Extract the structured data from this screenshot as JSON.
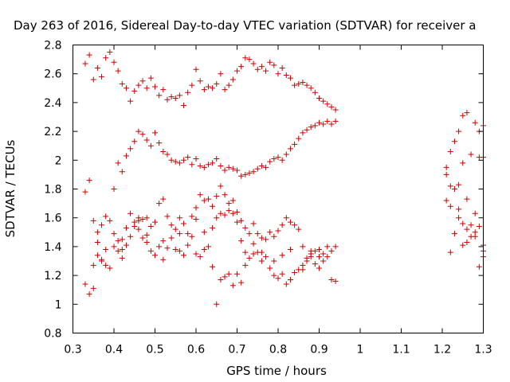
{
  "chart_data": {
    "type": "scatter",
    "title": "Day 263 of 2016, Sidereal Day-to-day VTEC variation (SDTVAR) for receiver a",
    "xlabel": "GPS time / hours",
    "ylabel": "SDTVAR / TECUs",
    "xlim": [
      0.3,
      1.3
    ],
    "ylim": [
      0.8,
      2.8
    ],
    "x_ticks": [
      "0.3",
      "0.4",
      "0.5",
      "0.6",
      "0.7",
      "0.8",
      "0.9",
      "1",
      "1.1",
      "1.2",
      "1.3"
    ],
    "y_ticks": [
      "0.8",
      "1",
      "1.2",
      "1.4",
      "1.6",
      "1.8",
      "2",
      "2.2",
      "2.4",
      "2.6",
      "2.8"
    ],
    "marker": "+",
    "color": "#cc0000",
    "series": [
      {
        "name": "SDTVAR",
        "points": [
          [
            0.33,
            2.67
          ],
          [
            0.34,
            2.73
          ],
          [
            0.35,
            2.56
          ],
          [
            0.36,
            2.64
          ],
          [
            0.37,
            2.58
          ],
          [
            0.38,
            2.71
          ],
          [
            0.39,
            2.75
          ],
          [
            0.4,
            2.68
          ],
          [
            0.41,
            2.62
          ],
          [
            0.42,
            2.53
          ],
          [
            0.43,
            2.5
          ],
          [
            0.44,
            2.41
          ],
          [
            0.45,
            2.48
          ],
          [
            0.46,
            2.52
          ],
          [
            0.47,
            2.55
          ],
          [
            0.48,
            2.5
          ],
          [
            0.49,
            2.57
          ],
          [
            0.5,
            2.51
          ],
          [
            0.51,
            2.45
          ],
          [
            0.52,
            2.49
          ],
          [
            0.53,
            2.42
          ],
          [
            0.54,
            2.44
          ],
          [
            0.55,
            2.43
          ],
          [
            0.56,
            2.45
          ],
          [
            0.57,
            2.38
          ],
          [
            0.58,
            2.47
          ],
          [
            0.59,
            2.52
          ],
          [
            0.6,
            2.63
          ],
          [
            0.61,
            2.55
          ],
          [
            0.62,
            2.49
          ],
          [
            0.63,
            2.51
          ],
          [
            0.64,
            2.5
          ],
          [
            0.65,
            2.53
          ],
          [
            0.66,
            2.6
          ],
          [
            0.67,
            2.49
          ],
          [
            0.68,
            2.52
          ],
          [
            0.69,
            2.56
          ],
          [
            0.7,
            2.62
          ],
          [
            0.71,
            2.65
          ],
          [
            0.72,
            2.71
          ],
          [
            0.73,
            2.7
          ],
          [
            0.74,
            2.67
          ],
          [
            0.75,
            2.63
          ],
          [
            0.76,
            2.65
          ],
          [
            0.77,
            2.62
          ],
          [
            0.78,
            2.68
          ],
          [
            0.79,
            2.66
          ],
          [
            0.8,
            2.6
          ],
          [
            0.81,
            2.64
          ],
          [
            0.82,
            2.59
          ],
          [
            0.83,
            2.57
          ],
          [
            0.84,
            2.52
          ],
          [
            0.85,
            2.53
          ],
          [
            0.86,
            2.54
          ],
          [
            0.87,
            2.52
          ],
          [
            0.88,
            2.5
          ],
          [
            0.89,
            2.47
          ],
          [
            0.9,
            2.43
          ],
          [
            0.91,
            2.41
          ],
          [
            0.92,
            2.39
          ],
          [
            0.93,
            2.37
          ],
          [
            0.94,
            2.35
          ],
          [
            0.4,
            1.8
          ],
          [
            0.41,
            1.98
          ],
          [
            0.42,
            1.92
          ],
          [
            0.43,
            2.03
          ],
          [
            0.44,
            2.08
          ],
          [
            0.45,
            2.13
          ],
          [
            0.46,
            2.2
          ],
          [
            0.47,
            2.18
          ],
          [
            0.48,
            2.14
          ],
          [
            0.49,
            2.1
          ],
          [
            0.5,
            2.19
          ],
          [
            0.51,
            2.12
          ],
          [
            0.52,
            2.06
          ],
          [
            0.53,
            2.04
          ],
          [
            0.54,
            2.0
          ],
          [
            0.55,
            1.99
          ],
          [
            0.56,
            1.98
          ],
          [
            0.57,
            2.0
          ],
          [
            0.58,
            2.02
          ],
          [
            0.59,
            1.97
          ],
          [
            0.6,
            2.01
          ],
          [
            0.61,
            1.96
          ],
          [
            0.62,
            1.95
          ],
          [
            0.63,
            1.97
          ],
          [
            0.64,
            1.98
          ],
          [
            0.65,
            2.01
          ],
          [
            0.66,
            1.96
          ],
          [
            0.67,
            1.93
          ],
          [
            0.68,
            1.95
          ],
          [
            0.69,
            1.94
          ],
          [
            0.7,
            1.93
          ],
          [
            0.71,
            1.89
          ],
          [
            0.72,
            1.9
          ],
          [
            0.73,
            1.91
          ],
          [
            0.74,
            1.92
          ],
          [
            0.75,
            1.94
          ],
          [
            0.76,
            1.96
          ],
          [
            0.77,
            1.95
          ],
          [
            0.78,
            1.99
          ],
          [
            0.79,
            2.01
          ],
          [
            0.8,
            2.02
          ],
          [
            0.81,
            2.0
          ],
          [
            0.82,
            2.04
          ],
          [
            0.83,
            2.08
          ],
          [
            0.84,
            2.11
          ],
          [
            0.85,
            2.15
          ],
          [
            0.86,
            2.19
          ],
          [
            0.87,
            2.21
          ],
          [
            0.88,
            2.23
          ],
          [
            0.89,
            2.24
          ],
          [
            0.9,
            2.26
          ],
          [
            0.91,
            2.25
          ],
          [
            0.92,
            2.27
          ],
          [
            0.93,
            2.25
          ],
          [
            0.94,
            2.27
          ],
          [
            0.33,
            1.78
          ],
          [
            0.34,
            1.86
          ],
          [
            0.35,
            1.58
          ],
          [
            0.36,
            1.5
          ],
          [
            0.37,
            1.55
          ],
          [
            0.38,
            1.61
          ],
          [
            0.39,
            1.58
          ],
          [
            0.4,
            1.49
          ],
          [
            0.41,
            1.37
          ],
          [
            0.42,
            1.45
          ],
          [
            0.43,
            1.53
          ],
          [
            0.44,
            1.63
          ],
          [
            0.45,
            1.57
          ],
          [
            0.46,
            1.52
          ],
          [
            0.47,
            1.59
          ],
          [
            0.48,
            1.6
          ],
          [
            0.49,
            1.54
          ],
          [
            0.5,
            1.57
          ],
          [
            0.51,
            1.7
          ],
          [
            0.52,
            1.73
          ],
          [
            0.53,
            1.61
          ],
          [
            0.54,
            1.55
          ],
          [
            0.55,
            1.52
          ],
          [
            0.56,
            1.6
          ],
          [
            0.57,
            1.56
          ],
          [
            0.58,
            1.49
          ],
          [
            0.59,
            1.61
          ],
          [
            0.6,
            1.67
          ],
          [
            0.61,
            1.76
          ],
          [
            0.62,
            1.72
          ],
          [
            0.63,
            1.73
          ],
          [
            0.64,
            1.68
          ],
          [
            0.65,
            1.75
          ],
          [
            0.66,
            1.82
          ],
          [
            0.67,
            1.76
          ],
          [
            0.68,
            1.7
          ],
          [
            0.69,
            1.72
          ],
          [
            0.7,
            1.64
          ],
          [
            0.71,
            1.58
          ],
          [
            0.72,
            1.53
          ],
          [
            0.73,
            1.49
          ],
          [
            0.74,
            1.56
          ],
          [
            0.75,
            1.49
          ],
          [
            0.76,
            1.46
          ],
          [
            0.77,
            1.45
          ],
          [
            0.78,
            1.5
          ],
          [
            0.79,
            1.47
          ],
          [
            0.8,
            1.51
          ],
          [
            0.81,
            1.55
          ],
          [
            0.82,
            1.6
          ],
          [
            0.83,
            1.57
          ],
          [
            0.84,
            1.55
          ],
          [
            0.85,
            1.52
          ],
          [
            0.86,
            1.4
          ],
          [
            0.87,
            1.32
          ],
          [
            0.88,
            1.35
          ],
          [
            0.89,
            1.37
          ],
          [
            0.9,
            1.38
          ],
          [
            0.91,
            1.35
          ],
          [
            0.92,
            1.4
          ],
          [
            0.93,
            1.37
          ],
          [
            0.94,
            1.4
          ],
          [
            0.33,
            1.14
          ],
          [
            0.34,
            1.07
          ],
          [
            0.35,
            1.27
          ],
          [
            0.36,
            1.34
          ],
          [
            0.37,
            1.3
          ],
          [
            0.38,
            1.27
          ],
          [
            0.39,
            1.25
          ],
          [
            0.4,
            1.4
          ],
          [
            0.41,
            1.44
          ],
          [
            0.42,
            1.38
          ],
          [
            0.43,
            1.41
          ],
          [
            0.44,
            1.47
          ],
          [
            0.45,
            1.54
          ],
          [
            0.46,
            1.6
          ],
          [
            0.47,
            1.46
          ],
          [
            0.48,
            1.43
          ],
          [
            0.49,
            1.37
          ],
          [
            0.5,
            1.34
          ],
          [
            0.51,
            1.4
          ],
          [
            0.52,
            1.44
          ],
          [
            0.53,
            1.39
          ],
          [
            0.54,
            1.46
          ],
          [
            0.55,
            1.38
          ],
          [
            0.56,
            1.37
          ],
          [
            0.57,
            1.34
          ],
          [
            0.58,
            1.41
          ],
          [
            0.59,
            1.47
          ],
          [
            0.6,
            1.35
          ],
          [
            0.61,
            1.33
          ],
          [
            0.62,
            1.38
          ],
          [
            0.63,
            1.4
          ],
          [
            0.64,
            1.53
          ],
          [
            0.65,
            1.6
          ],
          [
            0.66,
            1.63
          ],
          [
            0.67,
            1.62
          ],
          [
            0.68,
            1.65
          ],
          [
            0.69,
            1.63
          ],
          [
            0.7,
            1.57
          ],
          [
            0.71,
            1.44
          ],
          [
            0.72,
            1.36
          ],
          [
            0.73,
            1.32
          ],
          [
            0.74,
            1.35
          ],
          [
            0.75,
            1.36
          ],
          [
            0.76,
            1.3
          ],
          [
            0.77,
            1.33
          ],
          [
            0.78,
            1.25
          ],
          [
            0.79,
            1.2
          ],
          [
            0.8,
            1.18
          ],
          [
            0.81,
            1.21
          ],
          [
            0.82,
            1.14
          ],
          [
            0.83,
            1.17
          ],
          [
            0.84,
            1.22
          ],
          [
            0.85,
            1.24
          ],
          [
            0.86,
            1.27
          ],
          [
            0.87,
            1.3
          ],
          [
            0.88,
            1.33
          ],
          [
            0.89,
            1.28
          ],
          [
            0.9,
            1.25
          ],
          [
            0.91,
            1.3
          ],
          [
            0.92,
            1.33
          ],
          [
            0.93,
            1.17
          ],
          [
            0.94,
            1.16
          ],
          [
            0.35,
            1.11
          ],
          [
            0.36,
            1.43
          ],
          [
            0.37,
            1.31
          ],
          [
            0.38,
            1.38
          ],
          [
            0.42,
            1.32
          ],
          [
            0.46,
            1.58
          ],
          [
            0.48,
            1.48
          ],
          [
            0.52,
            1.31
          ],
          [
            0.56,
            1.49
          ],
          [
            0.6,
            1.59
          ],
          [
            0.62,
            1.5
          ],
          [
            0.64,
            1.26
          ],
          [
            0.65,
            1.0
          ],
          [
            0.66,
            1.17
          ],
          [
            0.67,
            1.19
          ],
          [
            0.68,
            1.21
          ],
          [
            0.69,
            1.13
          ],
          [
            0.7,
            1.21
          ],
          [
            0.71,
            1.15
          ],
          [
            0.72,
            1.27
          ],
          [
            0.74,
            1.42
          ],
          [
            0.76,
            1.36
          ],
          [
            0.79,
            1.3
          ],
          [
            0.81,
            1.34
          ],
          [
            0.83,
            1.38
          ],
          [
            0.86,
            1.24
          ],
          [
            0.88,
            1.37
          ],
          [
            0.9,
            1.33
          ],
          [
            1.21,
            1.95
          ],
          [
            1.21,
            1.72
          ],
          [
            1.22,
            2.06
          ],
          [
            1.22,
            1.82
          ],
          [
            1.22,
            1.36
          ],
          [
            1.23,
            2.13
          ],
          [
            1.23,
            1.8
          ],
          [
            1.23,
            1.49
          ],
          [
            1.24,
            1.6
          ],
          [
            1.24,
            1.66
          ],
          [
            1.24,
            2.2
          ],
          [
            1.25,
            2.31
          ],
          [
            1.25,
            1.98
          ],
          [
            1.25,
            1.56
          ],
          [
            1.25,
            1.41
          ],
          [
            1.26,
            2.33
          ],
          [
            1.26,
            1.73
          ],
          [
            1.26,
            1.52
          ],
          [
            1.27,
            2.04
          ],
          [
            1.27,
            1.55
          ],
          [
            1.27,
            1.47
          ],
          [
            1.28,
            2.26
          ],
          [
            1.28,
            1.63
          ],
          [
            1.28,
            1.5
          ],
          [
            1.29,
            2.02
          ],
          [
            1.29,
            1.54
          ],
          [
            1.29,
            1.26
          ],
          [
            1.3,
            2.24
          ],
          [
            1.3,
            2.02
          ],
          [
            1.3,
            1.37
          ],
          [
            1.3,
            1.33
          ],
          [
            1.21,
            1.9
          ],
          [
            1.22,
            1.68
          ],
          [
            1.24,
            1.83
          ],
          [
            1.26,
            1.43
          ],
          [
            1.28,
            1.47
          ],
          [
            1.29,
            2.2
          ],
          [
            1.3,
            1.41
          ]
        ]
      }
    ]
  }
}
